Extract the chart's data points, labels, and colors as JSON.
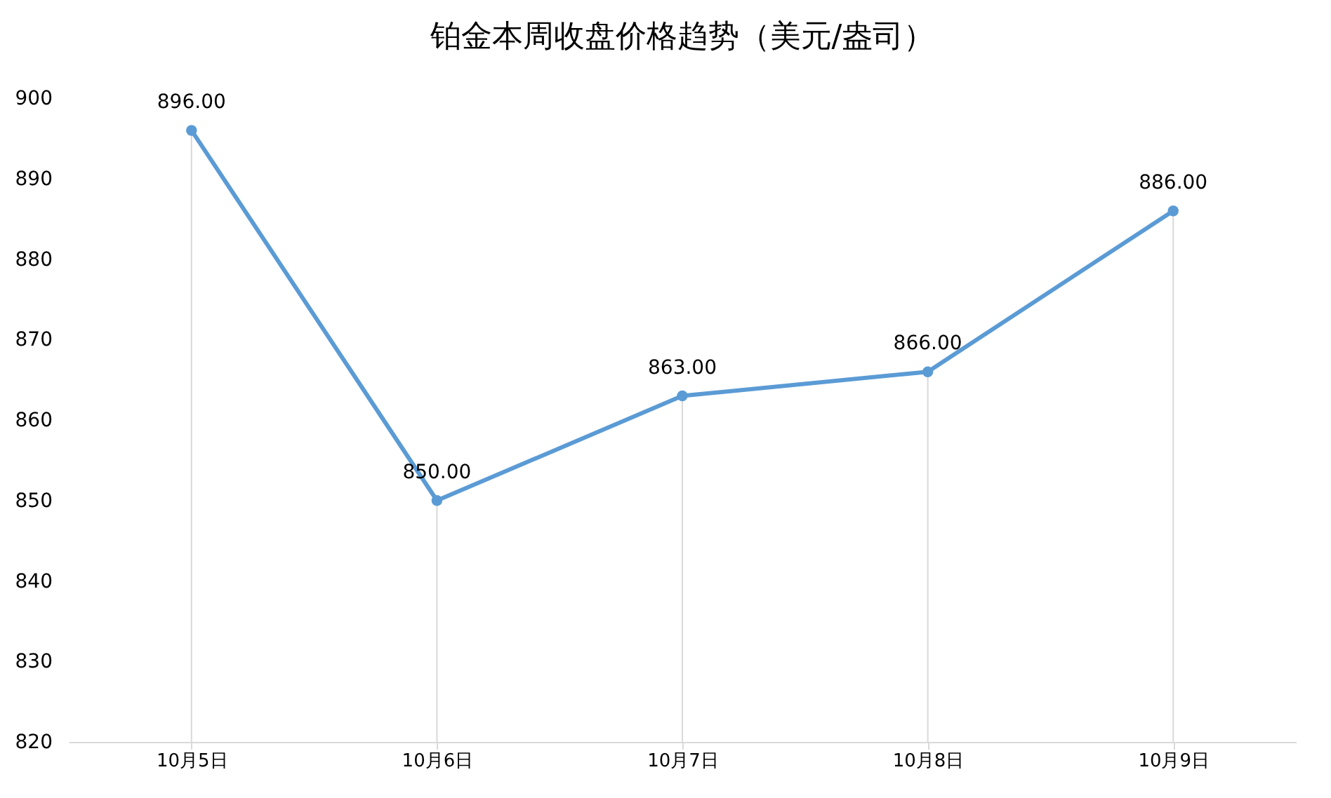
{
  "chart_data": {
    "type": "line",
    "title": "铂金本周收盘价格趋势（美元/盎司）",
    "categories": [
      "10月5日",
      "10月6日",
      "10月7日",
      "10月8日",
      "10月9日"
    ],
    "series": [
      {
        "color": "#5b9bd5",
        "values": [
          896,
          850,
          863,
          866,
          886
        ],
        "value_labels": [
          "896.00",
          "850.00",
          "863.00",
          "866.00",
          "886.00"
        ]
      }
    ],
    "ylim": [
      820,
      900
    ],
    "yticks": [
      820,
      830,
      840,
      850,
      860,
      870,
      880,
      890,
      900
    ],
    "grid": "x",
    "marker": "circle",
    "line_style": "solid"
  }
}
